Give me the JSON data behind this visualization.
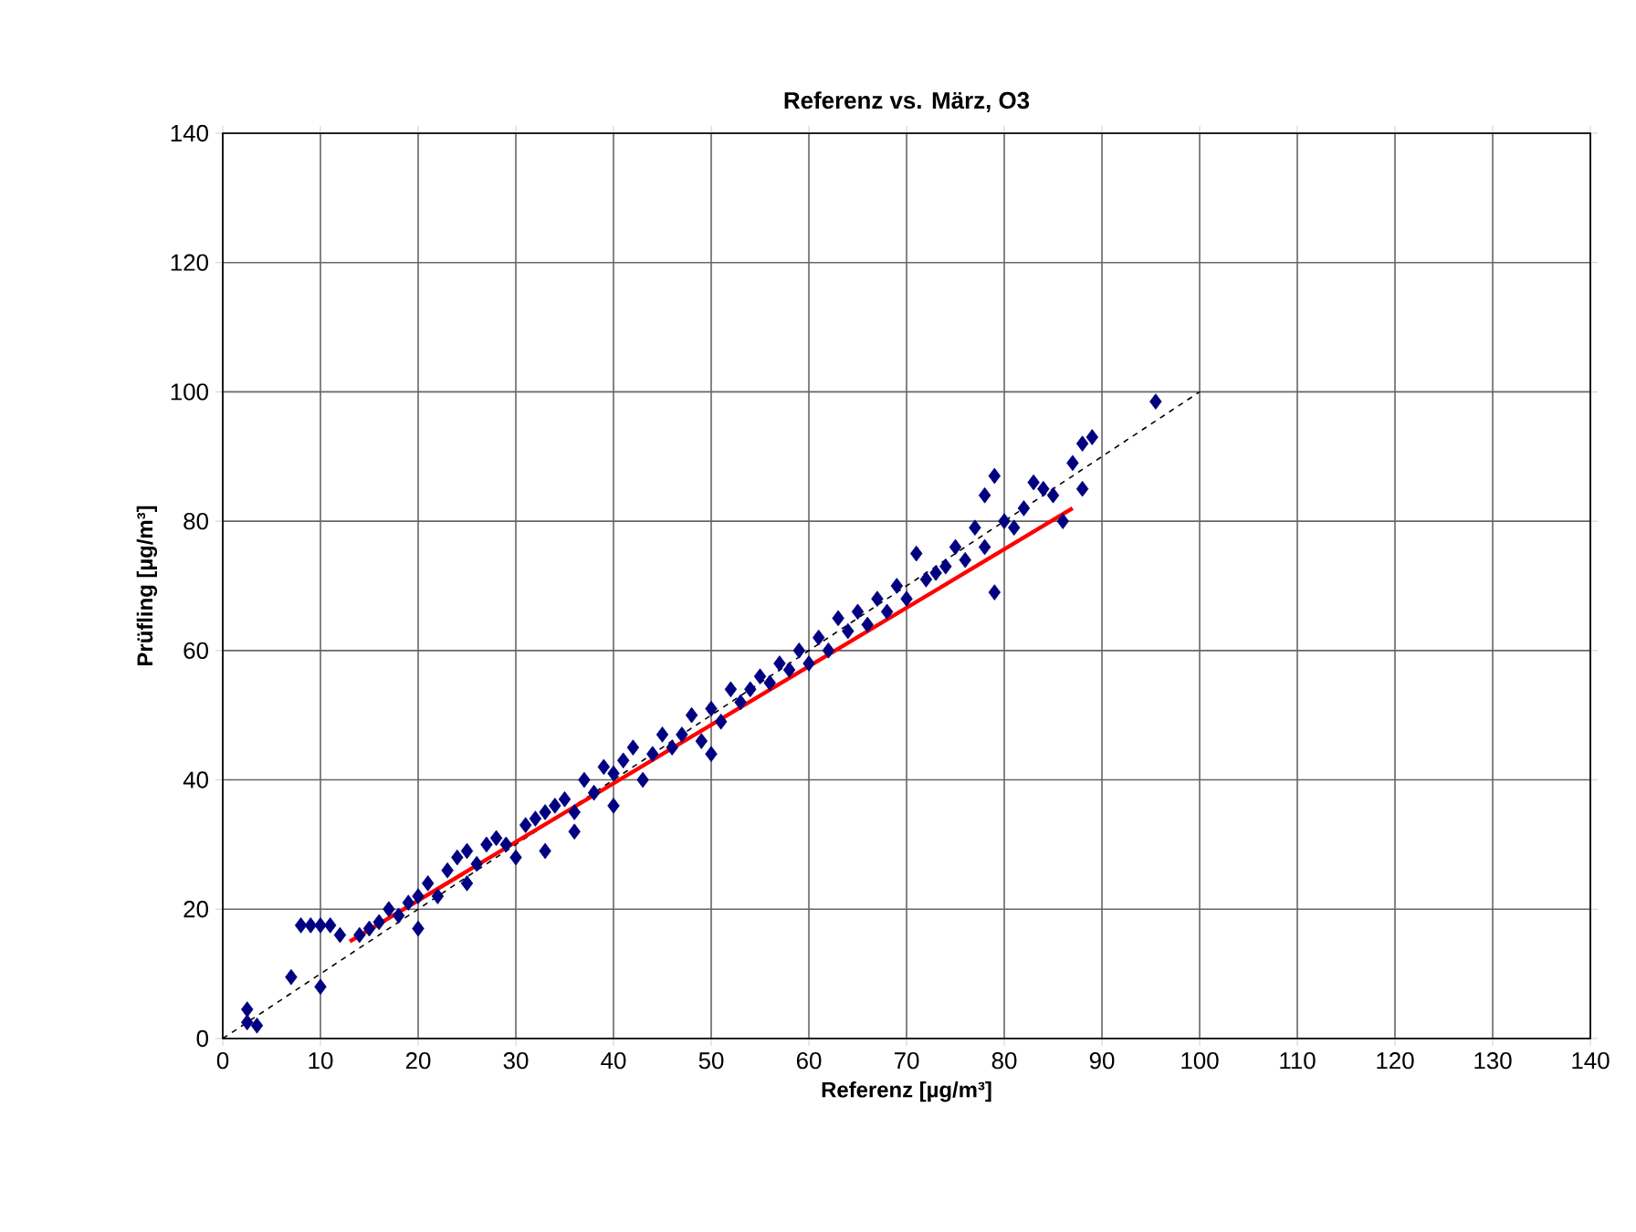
{
  "chart_data": {
    "type": "scatter",
    "title": "Referenz vs. März, O3",
    "xlabel": "Referenz [µg/m³]",
    "ylabel": "Prüfling [µg/m³]",
    "xlim": [
      0,
      140
    ],
    "ylim": [
      0,
      140
    ],
    "xticks": [
      0,
      10,
      20,
      30,
      40,
      50,
      60,
      70,
      80,
      90,
      100,
      110,
      120,
      130,
      140
    ],
    "yticks": [
      0,
      20,
      40,
      60,
      80,
      100,
      120,
      140
    ],
    "grid": true,
    "series": [
      {
        "marker": "diamond",
        "color": "#000080",
        "x": [
          2.5,
          2.5,
          3.5,
          7,
          8,
          9,
          10,
          11,
          10,
          12,
          14,
          15,
          16,
          17,
          18,
          19,
          20,
          20,
          21,
          22,
          23,
          24,
          25,
          25,
          26,
          27,
          28,
          29,
          30,
          31,
          32,
          33,
          33,
          34,
          35,
          36,
          36,
          37,
          38,
          39,
          40,
          40,
          41,
          42,
          43,
          44,
          45,
          46,
          47,
          48,
          49,
          50,
          50,
          51,
          52,
          53,
          54,
          55,
          56,
          57,
          58,
          59,
          60,
          61,
          62,
          63,
          64,
          65,
          66,
          67,
          68,
          69,
          70,
          71,
          72,
          73,
          74,
          75,
          76,
          77,
          78,
          78,
          79,
          79,
          80,
          81,
          82,
          83,
          84,
          85,
          86,
          87,
          88,
          88,
          89,
          95.5
        ],
        "values": [
          4.5,
          2.5,
          2,
          9.5,
          17.5,
          17.5,
          17.5,
          17.5,
          8,
          16,
          16,
          17,
          18,
          20,
          19,
          21,
          22,
          17,
          24,
          22,
          26,
          28,
          29,
          24,
          27,
          30,
          31,
          30,
          28,
          33,
          34,
          35,
          29,
          36,
          37,
          35,
          32,
          40,
          38,
          42,
          41,
          36,
          43,
          45,
          40,
          44,
          47,
          45,
          47,
          50,
          46,
          51,
          44,
          49,
          54,
          52,
          54,
          56,
          55,
          58,
          57,
          60,
          58,
          62,
          60,
          65,
          63,
          66,
          64,
          68,
          66,
          70,
          68,
          75,
          71,
          72,
          73,
          76,
          74,
          79,
          76,
          84,
          87,
          69,
          80,
          79,
          82,
          86,
          85,
          84,
          80,
          89,
          85,
          92,
          93,
          98.5
        ]
      },
      {
        "type": "line",
        "marker": "none",
        "color": "#000000",
        "line_style": "dashed",
        "x": [
          0,
          100
        ],
        "values": [
          0,
          100
        ]
      },
      {
        "type": "line",
        "marker": "none",
        "color": "#ff0000",
        "x": [
          13,
          87
        ],
        "values": [
          15,
          82
        ]
      }
    ]
  }
}
